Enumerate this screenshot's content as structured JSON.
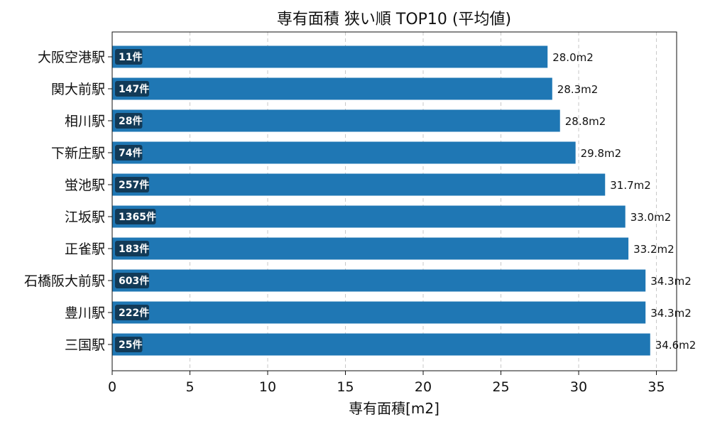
{
  "chart_data": {
    "type": "bar",
    "orientation": "horizontal",
    "title": "専有面積 狭い順 TOP10 (平均値)",
    "xlabel": "専有面積[m2]",
    "ylabel": "",
    "xlim": [
      0,
      36.3
    ],
    "xticks": [
      0,
      5,
      10,
      15,
      20,
      25,
      30,
      35
    ],
    "grid": "x-dashed",
    "bar_color": "#1f77b4",
    "count_badge_color": "#123a57",
    "value_suffix": "m2",
    "count_suffix": "件",
    "categories": [
      "大阪空港駅",
      "関大前駅",
      "相川駅",
      "下新庄駅",
      "蛍池駅",
      "江坂駅",
      "正雀駅",
      "石橋阪大前駅",
      "豊川駅",
      "三国駅"
    ],
    "values": [
      28.0,
      28.3,
      28.8,
      29.8,
      31.7,
      33.0,
      33.2,
      34.3,
      34.3,
      34.6
    ],
    "value_labels": [
      "28.0m2",
      "28.3m2",
      "28.8m2",
      "29.8m2",
      "31.7m2",
      "33.0m2",
      "33.2m2",
      "34.3m2",
      "34.3m2",
      "34.6m2"
    ],
    "counts": [
      "11件",
      "147件",
      "28件",
      "74件",
      "257件",
      "1365件",
      "183件",
      "603件",
      "222件",
      "25件"
    ]
  }
}
